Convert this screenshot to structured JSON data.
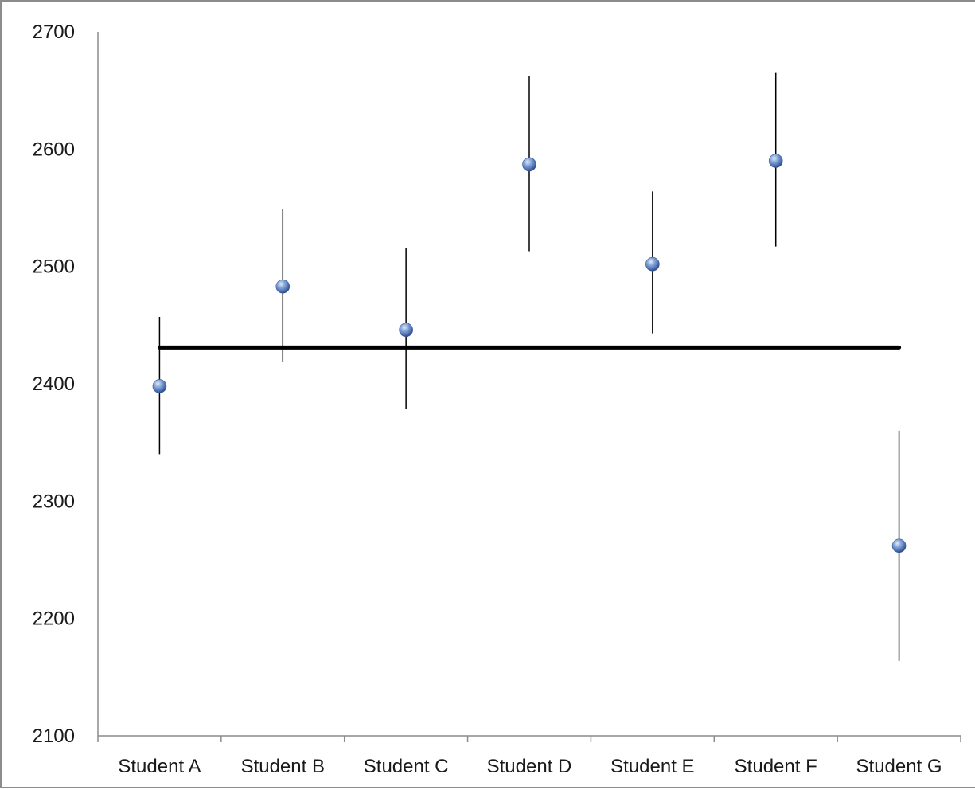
{
  "chart_data": {
    "type": "scatter",
    "title": "",
    "xlabel": "",
    "ylabel": "",
    "categories": [
      "Student A",
      "Student B",
      "Student C",
      "Student D",
      "Student E",
      "Student F",
      "Student G"
    ],
    "ylim": [
      2100,
      2700
    ],
    "yticks": [
      "2100",
      "2200",
      "2300",
      "2400",
      "2500",
      "2600",
      "2700"
    ],
    "grid": false,
    "legend": "none",
    "series": [
      {
        "values": [
          2398,
          2483,
          2446,
          2587,
          2502,
          2590,
          2262
        ],
        "error_low": [
          2340,
          2419,
          2379,
          2513,
          2443,
          2517,
          2164
        ],
        "error_high": [
          2457,
          2549,
          2516,
          2662,
          2564,
          2665,
          2360
        ],
        "marker_color": "#5b7fbf"
      }
    ],
    "reference_line": {
      "value": 2431,
      "color": "#000000"
    }
  }
}
